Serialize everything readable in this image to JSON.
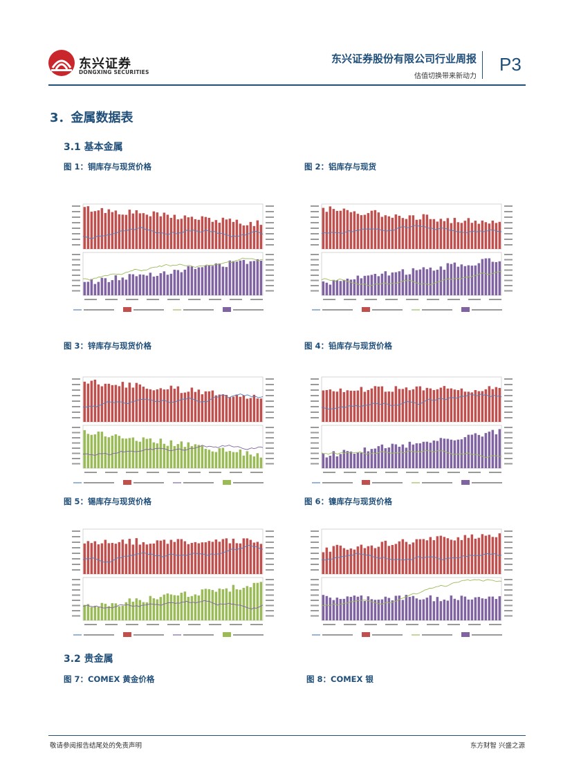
{
  "header": {
    "logo_name": "东兴证券",
    "logo_en": "DONGXING SECURITIES",
    "company": "东兴证券股份有限公司行业周报",
    "subtitle": "估值切换带来新动力",
    "page": "P3"
  },
  "section": {
    "title": "3．金属数据表",
    "sub1": "3.1  基本金属",
    "sub2": "3.2  贵金属"
  },
  "figures": [
    {
      "caption": "图 1：铜库存与现货价格",
      "kind": "copper"
    },
    {
      "caption": "图 2：铝库存与现货",
      "kind": "aluminum"
    },
    {
      "caption": "图 3：锌库存与现货价格",
      "kind": "zinc"
    },
    {
      "caption": "图 4：铅库存与现货价格",
      "kind": "lead"
    },
    {
      "caption": "图 5：锡库存与现货价格",
      "kind": "tin"
    },
    {
      "caption": "图 6：镍库存与现货价格",
      "kind": "nickel"
    },
    {
      "caption": "图 7：COMEX 黄金价格",
      "kind": "gold"
    },
    {
      "caption": "图 8：COMEX 银",
      "kind": "silver"
    }
  ],
  "colors": {
    "accent": "#1f4e79",
    "bar_red": "#c0504d",
    "bar_purple": "#8064a2",
    "bar_green": "#9bbb59",
    "line_blue": "#4f81bd",
    "line_olive": "#9bbb59"
  },
  "footer": {
    "left": "敬请参阅报告结尾处的免责声明",
    "right": "东方财智 兴盛之源"
  }
}
